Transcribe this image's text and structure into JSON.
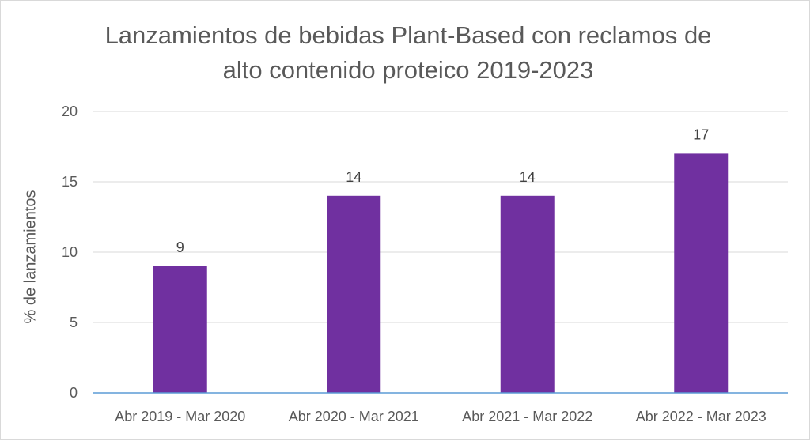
{
  "chart_data": {
    "type": "bar",
    "title_line1": "Lanzamientos de bebidas Plant-Based con reclamos de",
    "title_line2": "alto contenido proteico 2019-2023",
    "xlabel": "",
    "ylabel": "% de lanzamientos",
    "categories": [
      "Abr 2019 - Mar 2020",
      "Abr 2020 - Mar 2021",
      "Abr 2021 - Mar 2022",
      "Abr 2022 - Mar 2023"
    ],
    "values": [
      9,
      14,
      14,
      17
    ],
    "ylim": [
      0,
      20
    ],
    "yticks": [
      0,
      5,
      10,
      15,
      20
    ],
    "grid": true,
    "data_labels": true,
    "colors": {
      "bar": "#7030a0",
      "grid": "#d9d9d9",
      "baseline": "#5b9bd5",
      "text": "#595959"
    }
  }
}
